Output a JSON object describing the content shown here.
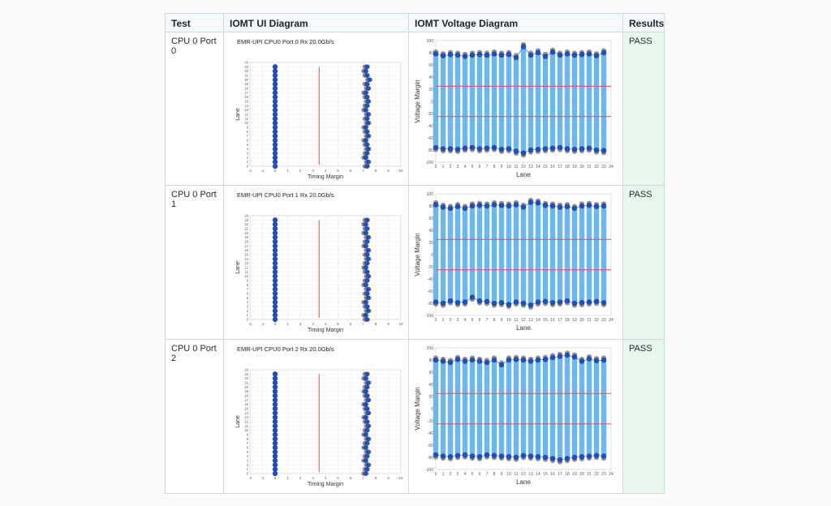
{
  "table": {
    "headers": [
      "Test",
      "IOMT UI Diagram",
      "IOMT Voltage Diagram",
      "Results"
    ],
    "rows": [
      {
        "test": "CPU 0 Port 0",
        "result": "PASS"
      },
      {
        "test": "CPU 0 Port 1",
        "result": "PASS"
      },
      {
        "test": "CPU 0 Port 2",
        "result": "PASS"
      }
    ]
  },
  "colors": {
    "marker_blue": "#1f4fbf",
    "marker_gray": "#6b6b6b",
    "bar_blue": "#6cb7ee",
    "limit_red": "#e0524e",
    "pass_bg": "#e6f8ee"
  },
  "chart_data": [
    {
      "type": "scatter",
      "title": "EMR-UPI CPU0 Port 0 Rx 20.0Gb/s",
      "xlabel": "Timing Margin",
      "ylabel": "Lane",
      "xlim": [
        -2,
        10
      ],
      "ylim": [
        0,
        24
      ],
      "x_ticks": [
        -2,
        -1,
        0,
        1,
        2,
        3,
        4,
        5,
        6,
        7,
        8,
        9,
        10
      ],
      "y_ticks": [
        0,
        1,
        2,
        3,
        4,
        5,
        6,
        7,
        8,
        9,
        10,
        11,
        12,
        13,
        14,
        15,
        16,
        17,
        18,
        19,
        20,
        21,
        22,
        23,
        24
      ],
      "lanes": [
        0,
        1,
        2,
        3,
        4,
        5,
        6,
        7,
        8,
        9,
        10,
        11,
        12,
        13,
        14,
        15,
        16,
        17,
        18,
        19,
        20,
        21,
        22,
        23
      ],
      "left_margin": 0,
      "threshold": 3.5,
      "right_margin": [
        7.3,
        7.4,
        7.2,
        7.3,
        7.4,
        7.3,
        7.2,
        7.4,
        7.3,
        7.2,
        7.4,
        7.3,
        7.4,
        7.2,
        7.3,
        7.4,
        7.3,
        7.2,
        7.4,
        7.3,
        7.5,
        7.3,
        7.2,
        7.3
      ]
    },
    {
      "type": "bar",
      "xlabel": "Lane",
      "ylabel": "Voltage Margin",
      "xlim": [
        0,
        24
      ],
      "ylim": [
        -100,
        100
      ],
      "x_ticks": [
        0,
        1,
        2,
        3,
        4,
        5,
        6,
        7,
        8,
        9,
        10,
        11,
        12,
        13,
        14,
        15,
        16,
        17,
        18,
        19,
        20,
        21,
        22,
        23,
        24
      ],
      "y_ticks": [
        -100,
        -80,
        -60,
        -40,
        -20,
        0,
        20,
        40,
        60,
        80,
        100
      ],
      "limits": [
        25,
        -25
      ],
      "high": [
        78,
        75,
        77,
        76,
        74,
        76,
        77,
        76,
        78,
        76,
        77,
        72,
        90,
        76,
        80,
        74,
        81,
        76,
        78,
        76,
        77,
        78,
        75,
        80
      ],
      "low": [
        -76,
        -78,
        -78,
        -79,
        -77,
        -76,
        -78,
        -77,
        -76,
        -79,
        -78,
        -82,
        -85,
        -80,
        -79,
        -78,
        -77,
        -76,
        -78,
        -79,
        -78,
        -77,
        -80,
        -81
      ]
    },
    {
      "type": "scatter",
      "title": "EMR-UPI CPU0 Port 1 Rx 20.0Gb/s",
      "xlabel": "Timing Margin",
      "ylabel": "Lane",
      "xlim": [
        -2,
        10
      ],
      "ylim": [
        0,
        24
      ],
      "x_ticks": [
        -2,
        -1,
        0,
        1,
        2,
        3,
        4,
        5,
        6,
        7,
        8,
        9,
        10
      ],
      "y_ticks": [
        0,
        1,
        2,
        3,
        4,
        5,
        6,
        7,
        8,
        9,
        10,
        11,
        12,
        13,
        14,
        15,
        16,
        17,
        18,
        19,
        20,
        21,
        22,
        23,
        24
      ],
      "lanes": [
        0,
        1,
        2,
        3,
        4,
        5,
        6,
        7,
        8,
        9,
        10,
        11,
        12,
        13,
        14,
        15,
        16,
        17,
        18,
        19,
        20,
        21,
        22,
        23
      ],
      "left_margin": 0,
      "threshold": 3.5,
      "right_margin": [
        7.3,
        7.2,
        7.4,
        7.3,
        7.2,
        7.4,
        7.3,
        7.4,
        7.2,
        7.3,
        7.4,
        7.3,
        7.2,
        7.3,
        7.4,
        7.3,
        7.4,
        7.2,
        7.3,
        7.4,
        7.2,
        7.3,
        7.2,
        7.3
      ]
    },
    {
      "type": "bar",
      "xlabel": "Lane",
      "ylabel": "Voltage Margin",
      "xlim": [
        0,
        24
      ],
      "ylim": [
        -100,
        100
      ],
      "x_ticks": [
        0,
        1,
        2,
        3,
        4,
        5,
        6,
        7,
        8,
        9,
        10,
        11,
        12,
        13,
        14,
        15,
        16,
        17,
        18,
        19,
        20,
        21,
        22,
        23,
        24
      ],
      "y_ticks": [
        -100,
        -80,
        -60,
        -40,
        -20,
        0,
        20,
        40,
        60,
        80,
        100
      ],
      "limits": [
        25,
        -25
      ],
      "high": [
        82,
        78,
        76,
        79,
        76,
        80,
        81,
        80,
        82,
        81,
        80,
        82,
        78,
        86,
        85,
        81,
        80,
        78,
        79,
        76,
        80,
        81,
        79,
        80
      ],
      "low": [
        -78,
        -80,
        -76,
        -79,
        -78,
        -70,
        -76,
        -77,
        -80,
        -79,
        -82,
        -78,
        -80,
        -83,
        -78,
        -77,
        -79,
        -78,
        -76,
        -80,
        -79,
        -78,
        -77,
        -79
      ]
    },
    {
      "type": "scatter",
      "title": "EMR-UPI CPU0 Port 2 Rx 20.0Gb/s",
      "xlabel": "Timing Margin",
      "ylabel": "Lane",
      "xlim": [
        -2,
        10
      ],
      "ylim": [
        0,
        24
      ],
      "x_ticks": [
        -2,
        -1,
        0,
        1,
        2,
        3,
        4,
        5,
        6,
        7,
        8,
        9,
        10
      ],
      "y_ticks": [
        0,
        1,
        2,
        3,
        4,
        5,
        6,
        7,
        8,
        9,
        10,
        11,
        12,
        13,
        14,
        15,
        16,
        17,
        18,
        19,
        20,
        21,
        22,
        23,
        24
      ],
      "lanes": [
        0,
        1,
        2,
        3,
        4,
        5,
        6,
        7,
        8,
        9,
        10,
        11,
        12,
        13,
        14,
        15,
        16,
        17,
        18,
        19,
        20,
        21,
        22,
        23
      ],
      "left_margin": 0,
      "threshold": 3.5,
      "right_margin": [
        7.2,
        7.3,
        7.4,
        7.2,
        7.3,
        7.4,
        7.2,
        7.3,
        7.4,
        7.2,
        7.3,
        7.4,
        7.3,
        7.2,
        7.4,
        7.3,
        7.2,
        7.4,
        7.3,
        7.2,
        7.3,
        7.4,
        7.2,
        7.3
      ]
    },
    {
      "type": "bar",
      "xlabel": "Lane",
      "ylabel": "Voltage Margin",
      "xlim": [
        0,
        24
      ],
      "ylim": [
        -100,
        100
      ],
      "x_ticks": [
        0,
        1,
        2,
        3,
        4,
        5,
        6,
        7,
        8,
        9,
        10,
        11,
        12,
        13,
        14,
        15,
        16,
        17,
        18,
        19,
        20,
        21,
        22,
        23,
        24
      ],
      "y_ticks": [
        -100,
        -80,
        -60,
        -40,
        -20,
        0,
        20,
        40,
        60,
        80,
        100
      ],
      "limits": [
        25,
        -25
      ],
      "high": [
        80,
        78,
        76,
        81,
        78,
        80,
        78,
        76,
        80,
        72,
        80,
        81,
        80,
        78,
        80,
        81,
        84,
        86,
        88,
        85,
        78,
        82,
        79,
        80
      ],
      "low": [
        -76,
        -78,
        -79,
        -77,
        -76,
        -78,
        -79,
        -76,
        -77,
        -78,
        -79,
        -80,
        -77,
        -78,
        -79,
        -80,
        -82,
        -84,
        -82,
        -80,
        -79,
        -78,
        -77,
        -78
      ]
    }
  ]
}
